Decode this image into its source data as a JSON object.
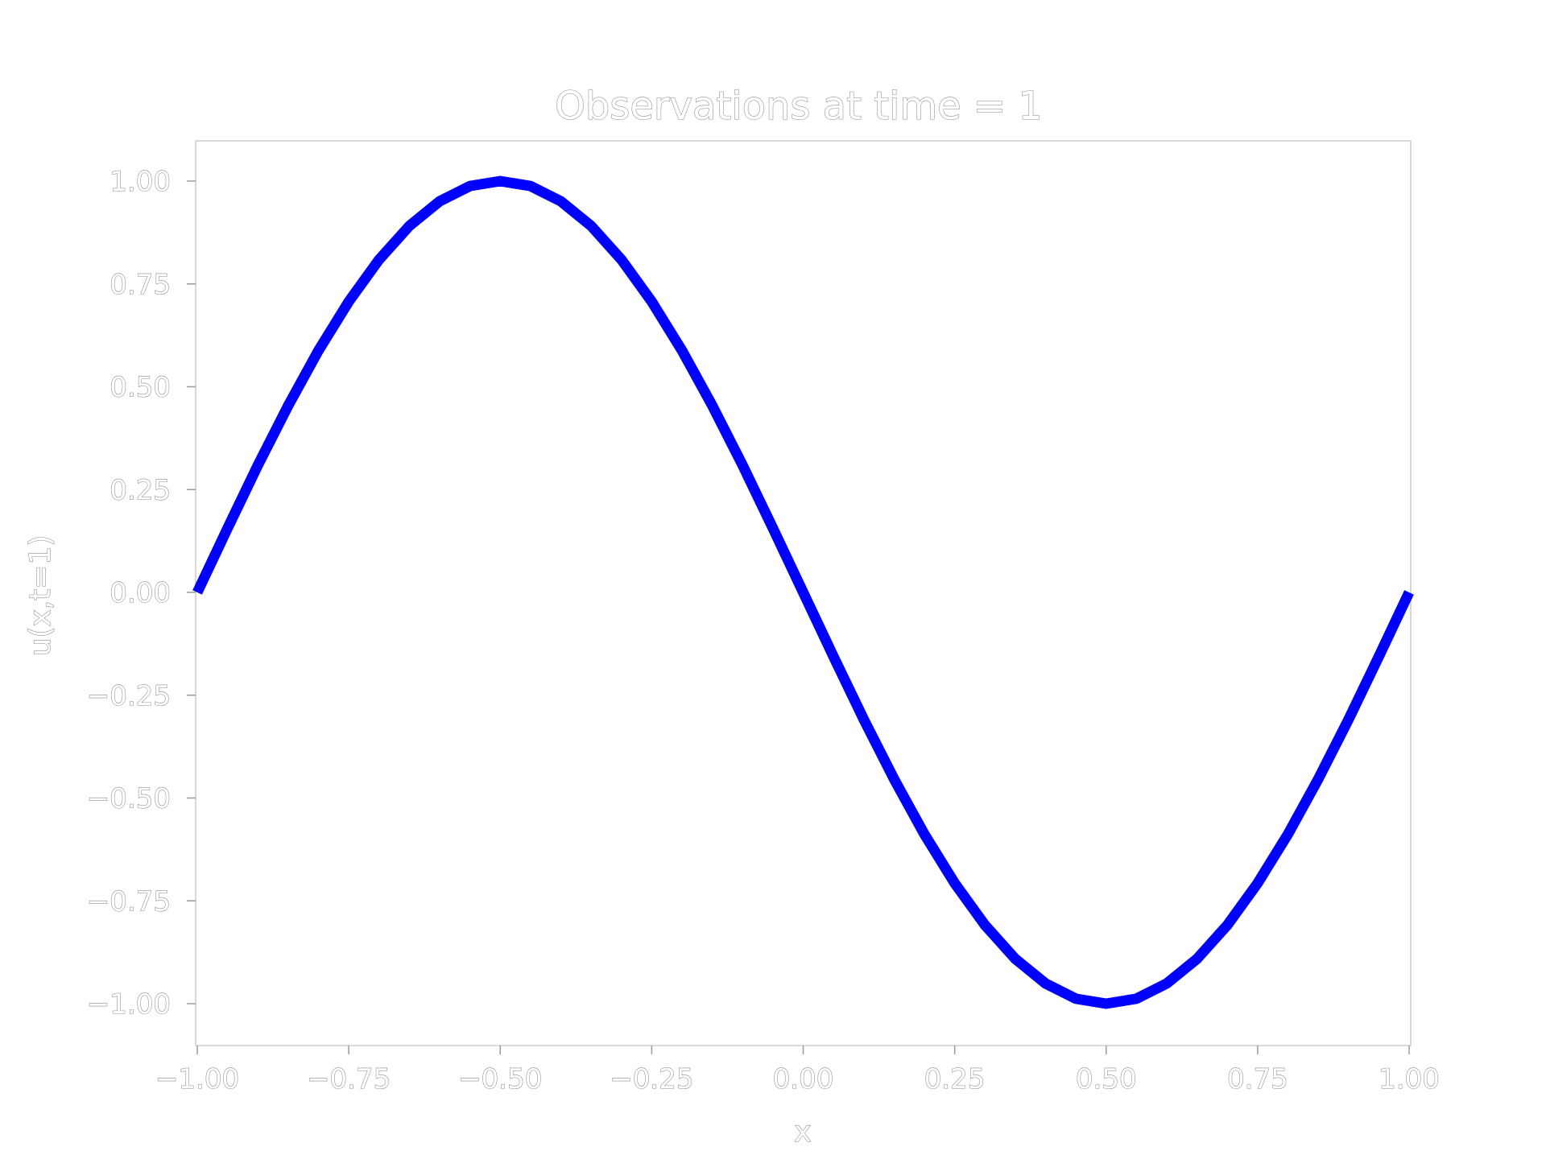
{
  "chart_data": {
    "type": "line",
    "title": "Observations at time = 1",
    "xlabel": "x",
    "ylabel": "u(x,t=1)",
    "xlim": [
      -1.0,
      1.0
    ],
    "ylim": [
      -1.1,
      1.1
    ],
    "xticks": [
      -1.0,
      -0.75,
      -0.5,
      -0.25,
      0.0,
      0.25,
      0.5,
      0.75,
      1.0
    ],
    "xtick_labels": [
      "−1.00",
      "−0.75",
      "−0.50",
      "−0.25",
      "0.00",
      "0.25",
      "0.50",
      "0.75",
      "1.00"
    ],
    "yticks": [
      1.0,
      0.75,
      0.5,
      0.25,
      0.0,
      -0.25,
      -0.5,
      -0.75,
      -1.0
    ],
    "ytick_labels": [
      "1.00",
      "0.75",
      "0.50",
      "0.25",
      "0.00",
      "−0.25",
      "−0.50",
      "−0.75",
      "−1.00"
    ],
    "grid": false,
    "series": [
      {
        "color": "#0000ff",
        "x": [
          -1.0,
          -0.95,
          -0.9,
          -0.85,
          -0.8,
          -0.75,
          -0.7,
          -0.65,
          -0.6,
          -0.55,
          -0.5,
          -0.45,
          -0.4,
          -0.35,
          -0.3,
          -0.25,
          -0.2,
          -0.15,
          -0.1,
          -0.05,
          0.0,
          0.05,
          0.1,
          0.15,
          0.2,
          0.25,
          0.3,
          0.35,
          0.4,
          0.45,
          0.5,
          0.55,
          0.6,
          0.65,
          0.7,
          0.75,
          0.8,
          0.85,
          0.9,
          0.95,
          1.0
        ],
        "y": [
          0.0,
          0.156,
          0.309,
          0.454,
          0.588,
          0.707,
          0.809,
          0.891,
          0.951,
          0.988,
          1.0,
          0.988,
          0.951,
          0.891,
          0.809,
          0.707,
          0.588,
          0.454,
          0.309,
          0.156,
          0.0,
          -0.156,
          -0.309,
          -0.454,
          -0.588,
          -0.707,
          -0.809,
          -0.891,
          -0.951,
          -0.988,
          -1.0,
          -0.988,
          -0.951,
          -0.891,
          -0.809,
          -0.707,
          -0.588,
          -0.454,
          -0.309,
          -0.156,
          0.0
        ]
      }
    ]
  }
}
